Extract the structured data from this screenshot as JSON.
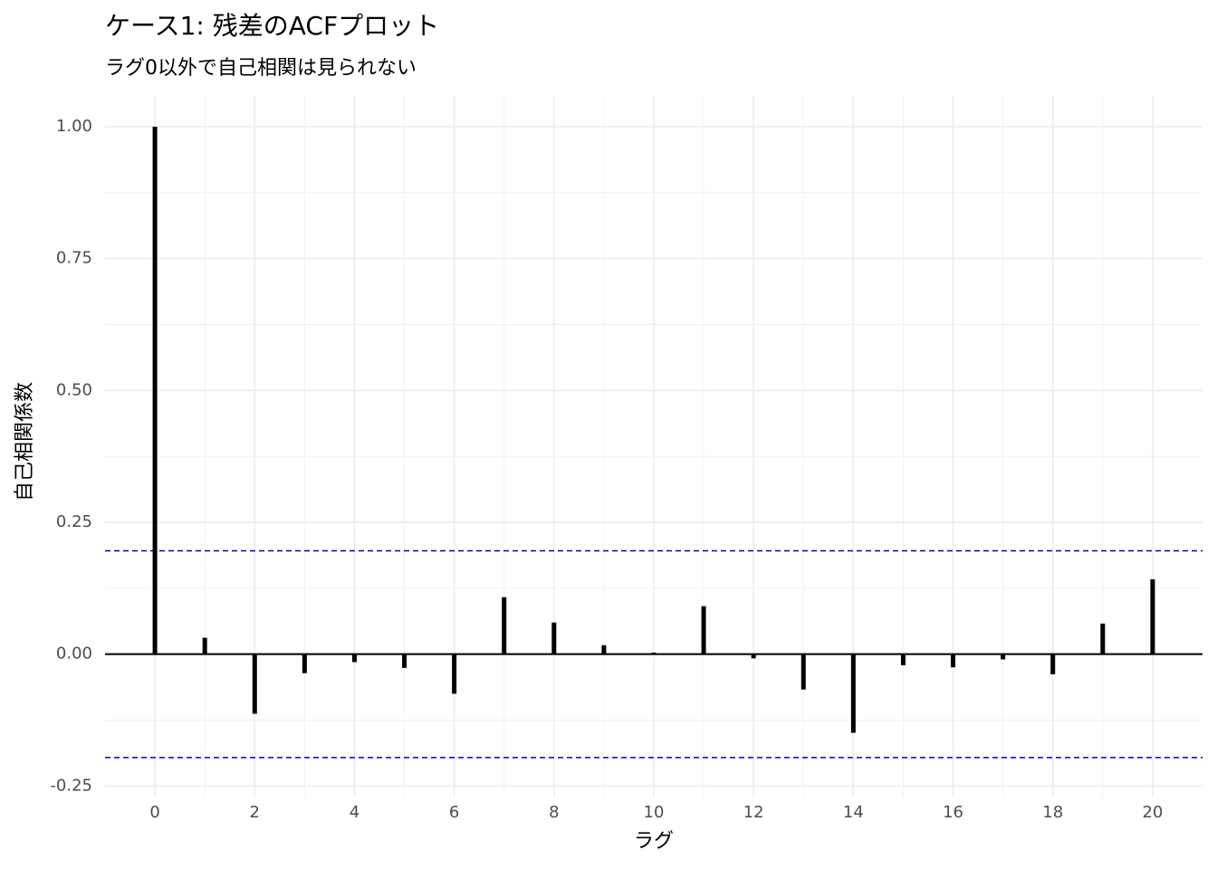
{
  "chart_data": {
    "type": "acf",
    "title": "ケース1: 残差のACFプロット",
    "subtitle": "ラグ0以外で自己相関は見られない",
    "x_label": "ラグ",
    "y_label": "自己相関係数",
    "x": [
      0,
      1,
      2,
      3,
      4,
      5,
      6,
      7,
      8,
      9,
      10,
      11,
      12,
      13,
      14,
      15,
      16,
      17,
      18,
      19,
      20
    ],
    "values": [
      1.0,
      0.031,
      -0.113,
      -0.036,
      -0.015,
      -0.026,
      -0.075,
      0.108,
      0.06,
      0.017,
      0.003,
      0.091,
      -0.008,
      -0.067,
      -0.149,
      -0.021,
      -0.025,
      -0.01,
      -0.038,
      0.058,
      0.142
    ],
    "color": "#000000",
    "confidence_interval": [
      -0.196,
      0.196
    ],
    "ci_color": "#0000cc",
    "xlim": [
      -1,
      21
    ],
    "ylim": [
      -0.27,
      1.06
    ],
    "xticks": [
      0,
      2,
      4,
      6,
      8,
      10,
      12,
      14,
      16,
      18,
      20
    ],
    "yticks": [
      {
        "value": -0.25,
        "label": "-0.25"
      },
      {
        "value": 0,
        "label": "0.00"
      },
      {
        "value": 0.25,
        "label": "0.25"
      },
      {
        "value": 0.5,
        "label": "0.50"
      },
      {
        "value": 0.75,
        "label": "0.75"
      },
      {
        "value": 1,
        "label": "1.00"
      }
    ],
    "grid": true
  }
}
